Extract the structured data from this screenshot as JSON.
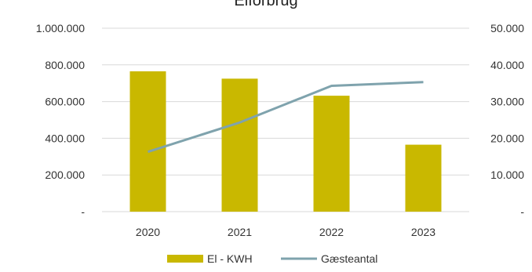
{
  "chart_data": {
    "type": "bar",
    "title": "Elforbrug",
    "categories": [
      "2020",
      "2021",
      "2022",
      "2023"
    ],
    "series": [
      {
        "name": "El - KWH",
        "type": "bar",
        "axis": "left",
        "color": "#c9b800",
        "values": [
          765000,
          725000,
          632000,
          365000
        ]
      },
      {
        "name": "Gæsteantal",
        "type": "line",
        "axis": "right",
        "color": "#7fa3ad",
        "values": [
          16300,
          24300,
          34300,
          35300
        ]
      }
    ],
    "y_left": {
      "min": 0,
      "max": 1000000,
      "ticks": [
        "-",
        "200.000",
        "400.000",
        "600.000",
        "800.000",
        "1.000.000"
      ],
      "tick_values": [
        0,
        200000,
        400000,
        600000,
        800000,
        1000000
      ]
    },
    "y_right": {
      "min": 0,
      "max": 50000,
      "ticks": [
        "-",
        "10.000",
        "20.000",
        "30.000",
        "40.000",
        "50.000"
      ],
      "tick_values": [
        0,
        10000,
        20000,
        30000,
        40000,
        50000
      ]
    },
    "grid": true,
    "legend_position": "bottom"
  }
}
